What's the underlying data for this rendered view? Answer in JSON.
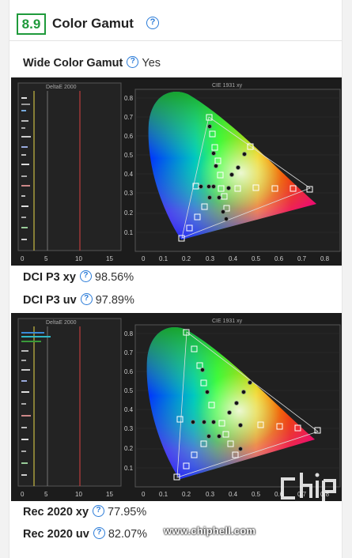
{
  "section": {
    "score": "8.9",
    "title": "Color Gamut"
  },
  "wide_gamut": {
    "label": "Wide Color Gamut",
    "value": "Yes"
  },
  "graph1": {
    "deltae_title": "DeltaE 2000",
    "cie_title": "CIE 1931 xy",
    "deltae_ticks": [
      "0",
      "5",
      "10",
      "15"
    ],
    "y_ticks": [
      "0.1",
      "0.2",
      "0.3",
      "0.4",
      "0.5",
      "0.6",
      "0.7",
      "0.8"
    ],
    "x_ticks": [
      "0",
      "0.1",
      "0.2",
      "0.3",
      "0.4",
      "0.5",
      "0.6",
      "0.7",
      "0.8"
    ]
  },
  "dci_xy": {
    "label": "DCI P3 xy",
    "value": "98.56%"
  },
  "dci_uv": {
    "label": "DCI P3 uv",
    "value": "97.89%"
  },
  "graph2": {
    "deltae_title": "DeltaE 2000",
    "cie_title": "CIE 1931 xy"
  },
  "rec_xy": {
    "label": "Rec 2020 xy",
    "value": "77.95%"
  },
  "rec_uv": {
    "label": "Rec 2020 uv",
    "value": "82.07%"
  },
  "watermark": {
    "site": "www.chiphell.com"
  },
  "colors": {
    "accent_green": "#1f9a3b",
    "help_blue": "#2a7bd8",
    "graph_bg": "#1c1c1c"
  }
}
